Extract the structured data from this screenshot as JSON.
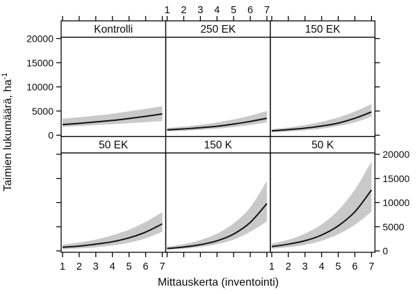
{
  "figure": {
    "xlabel": "Mittauskerta (inventointi)",
    "ylabel_base": "Taimien lukumäärä, ha",
    "ylabel_exponent": "-1"
  },
  "chart_data": {
    "type": "line",
    "subtype": "trellis-2x3-panels-with-confidence-bands",
    "title": "",
    "xlabel": "Mittauskerta (inventointi)",
    "ylabel": "Taimien lukumäärä, ha⁻¹",
    "x": [
      1,
      2,
      3,
      4,
      5,
      6,
      7
    ],
    "xticks": [
      1,
      2,
      3,
      4,
      5,
      6,
      7
    ],
    "yticks": [
      0,
      5000,
      10000,
      15000,
      20000
    ],
    "xlim": [
      1,
      7
    ],
    "ylim": [
      0,
      20000
    ],
    "grid": false,
    "legend": "none",
    "line_color": "#111111",
    "band_color": "#c9c9c9",
    "border_color": "#000000",
    "axis_label_alternation": {
      "top_x_labels_over_panel": "250 EK",
      "bottom_x_labels_under_panels": [
        "50 EK",
        "50 K"
      ],
      "left_y_labels_row": "top",
      "right_y_labels_row": "bottom"
    },
    "panels": [
      {
        "label": "Kontrolli",
        "row": 0,
        "col": 0,
        "mean": [
          2200,
          2450,
          2750,
          3050,
          3450,
          3900,
          4400
        ],
        "lower": [
          1700,
          1900,
          2100,
          2300,
          2500,
          2700,
          2900
        ],
        "upper": [
          3400,
          3700,
          4050,
          4450,
          4950,
          5450,
          6000
        ]
      },
      {
        "label": "250 EK",
        "row": 0,
        "col": 1,
        "mean": [
          1100,
          1300,
          1550,
          1850,
          2300,
          2850,
          3500
        ],
        "lower": [
          750,
          900,
          1100,
          1350,
          1700,
          2100,
          2650
        ],
        "upper": [
          1500,
          1800,
          2150,
          2650,
          3250,
          4050,
          5000
        ]
      },
      {
        "label": "150 EK",
        "row": 0,
        "col": 2,
        "mean": [
          900,
          1150,
          1450,
          1900,
          2500,
          3500,
          4800
        ],
        "lower": [
          550,
          750,
          1000,
          1350,
          1900,
          2650,
          3850
        ],
        "upper": [
          1250,
          1600,
          2100,
          2750,
          3700,
          4900,
          6450
        ]
      },
      {
        "label": "50 EK",
        "row": 1,
        "col": 0,
        "mean": [
          750,
          1000,
          1400,
          1900,
          2700,
          3900,
          5600
        ],
        "lower": [
          350,
          500,
          750,
          1150,
          1700,
          2600,
          3950
        ],
        "upper": [
          1300,
          1750,
          2350,
          3250,
          4400,
          6000,
          8000
        ]
      },
      {
        "label": "150 K",
        "row": 1,
        "col": 1,
        "mean": [
          500,
          800,
          1300,
          2100,
          3500,
          5900,
          9800
        ],
        "lower": [
          250,
          450,
          800,
          1400,
          2350,
          3950,
          6100
        ],
        "upper": [
          900,
          1400,
          2250,
          3600,
          5700,
          9000,
          14500
        ]
      },
      {
        "label": "50 K",
        "row": 1,
        "col": 2,
        "mean": [
          900,
          1400,
          2100,
          3300,
          5200,
          8100,
          12600
        ],
        "lower": [
          450,
          750,
          1250,
          2100,
          3450,
          5400,
          8100
        ],
        "upper": [
          1500,
          2300,
          3600,
          5500,
          8400,
          12700,
          18500
        ]
      }
    ]
  }
}
